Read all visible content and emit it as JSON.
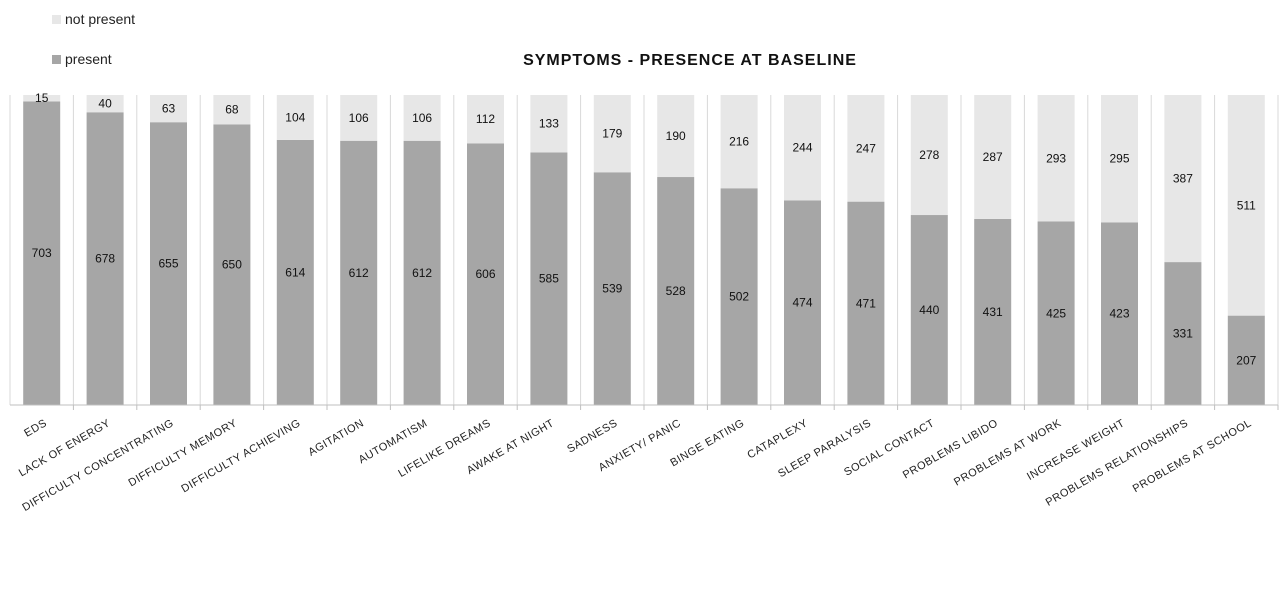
{
  "chart_data": {
    "type": "bar",
    "stacked": true,
    "title": "SYMPTOMS - PRESENCE AT BASELINE",
    "xlabel": "",
    "ylabel": "",
    "ylim": [
      0,
      718
    ],
    "legend_position": "top-left",
    "grid": false,
    "categories": [
      "EDS",
      "LACK OF ENERGY",
      "DIFFICULTY CONCENTRATING",
      "DIFFICULTY MEMORY",
      "DIFFICULTY ACHIEVING",
      "AGITATION",
      "AUTOMATISM",
      "LIFELIKE DREAMS",
      "AWAKE AT NIGHT",
      "SADNESS",
      "ANXIETY/ PANIC",
      "BINGE EATING",
      "CATAPLEXY",
      "SLEEP PARALYSIS",
      "SOCIAL CONTACT",
      "PROBLEMS LIBIDO",
      "PROBLEMS AT WORK",
      "INCREASE WEIGHT",
      "PROBLEMS RELATIONSHIPS",
      "PROBLEMS AT SCHOOL"
    ],
    "series": [
      {
        "name": "present",
        "color": "#a6a6a6",
        "values": [
          703,
          678,
          655,
          650,
          614,
          612,
          612,
          606,
          585,
          539,
          528,
          502,
          474,
          471,
          440,
          431,
          425,
          423,
          331,
          207
        ]
      },
      {
        "name": "not present",
        "color": "#e7e7e7",
        "values": [
          15,
          40,
          63,
          68,
          104,
          106,
          106,
          112,
          133,
          179,
          190,
          216,
          244,
          247,
          278,
          287,
          293,
          295,
          387,
          511
        ]
      }
    ]
  }
}
